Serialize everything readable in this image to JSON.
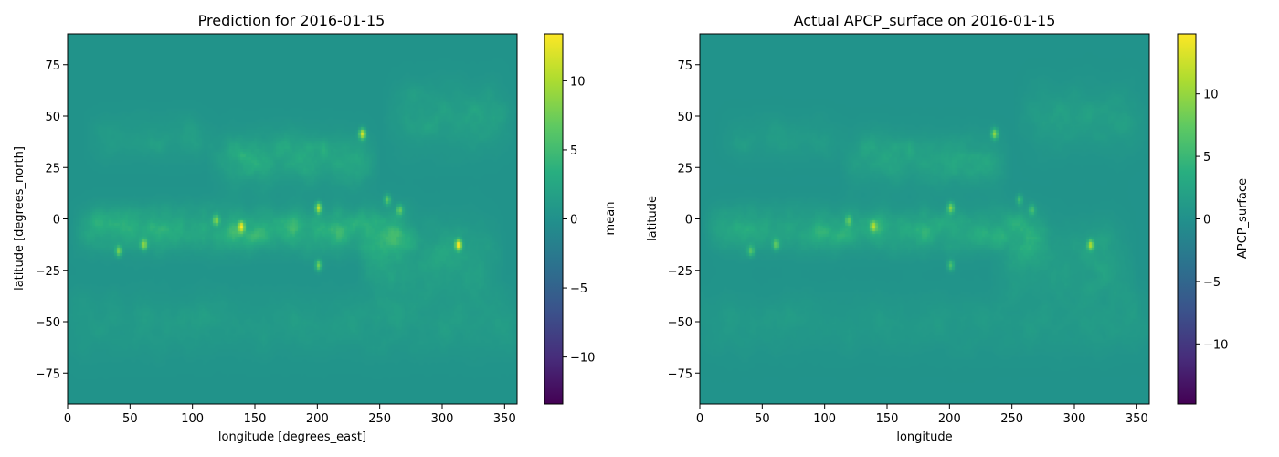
{
  "chart_data": [
    {
      "type": "heatmap",
      "title": "Prediction for 2016-01-15",
      "xlabel": "longitude [degrees_east]",
      "ylabel": "latitude [degrees_north]",
      "xlim": [
        0,
        360
      ],
      "ylim": [
        -90,
        90
      ],
      "x_ticks": [
        0,
        50,
        100,
        150,
        200,
        250,
        300,
        350
      ],
      "y_ticks": [
        -75,
        -50,
        -25,
        0,
        25,
        50,
        75
      ],
      "colorbar": {
        "label": "mean",
        "min": -13.4,
        "max": 13.4,
        "ticks": [
          -10,
          -5,
          0,
          5,
          10
        ],
        "tick_labels": [
          "−10",
          "−5",
          "0",
          "5",
          "10"
        ],
        "colormap": "viridis"
      }
    },
    {
      "type": "heatmap",
      "title": "Actual APCP_surface on 2016-01-15",
      "xlabel": "longitude",
      "ylabel": "latitude",
      "xlim": [
        0,
        360
      ],
      "ylim": [
        -90,
        90
      ],
      "x_ticks": [
        0,
        50,
        100,
        150,
        200,
        250,
        300,
        350
      ],
      "y_ticks": [
        -75,
        -50,
        -25,
        0,
        25,
        50,
        75
      ],
      "colorbar": {
        "label": "APCP_surface",
        "min": -14.8,
        "max": 14.8,
        "ticks": [
          -10,
          -5,
          0,
          5,
          10
        ],
        "tick_labels": [
          "−10",
          "−5",
          "0",
          "5",
          "10"
        ],
        "colormap": "viridis"
      }
    }
  ],
  "field_features": {
    "background_value": 0.3,
    "bands": [
      {
        "lon_start": 10,
        "lon_end": 270,
        "lat_center": -5,
        "lat_width": 10,
        "value": 4
      },
      {
        "lon_start": 120,
        "lon_end": 240,
        "lat_center": 30,
        "lat_width": 12,
        "value": 3
      },
      {
        "lon_start": 20,
        "lon_end": 110,
        "lat_center": 40,
        "lat_width": 10,
        "value": 1.5
      },
      {
        "lon_start": 240,
        "lon_end": 340,
        "lat_center": -20,
        "lat_width": 18,
        "value": 2.5
      },
      {
        "lon_start": 0,
        "lon_end": 360,
        "lat_center": -50,
        "lat_width": 15,
        "value": 1.2
      },
      {
        "lon_start": 260,
        "lon_end": 350,
        "lat_center": 50,
        "lat_width": 15,
        "value": 2
      }
    ],
    "hotspots": [
      {
        "lon": 235,
        "lat": 42,
        "value": 11
      },
      {
        "lon": 312,
        "lat": -12,
        "value": 12
      },
      {
        "lon": 200,
        "lat": 6,
        "value": 10
      },
      {
        "lon": 138,
        "lat": -3,
        "value": 10
      },
      {
        "lon": 200,
        "lat": -22,
        "value": 7
      },
      {
        "lon": 60,
        "lat": -12,
        "value": 8
      },
      {
        "lon": 255,
        "lat": 10,
        "value": 6
      },
      {
        "lon": 118,
        "lat": 0,
        "value": 7
      },
      {
        "lon": 265,
        "lat": 5,
        "value": 6
      },
      {
        "lon": 40,
        "lat": -15,
        "value": 7
      }
    ]
  }
}
